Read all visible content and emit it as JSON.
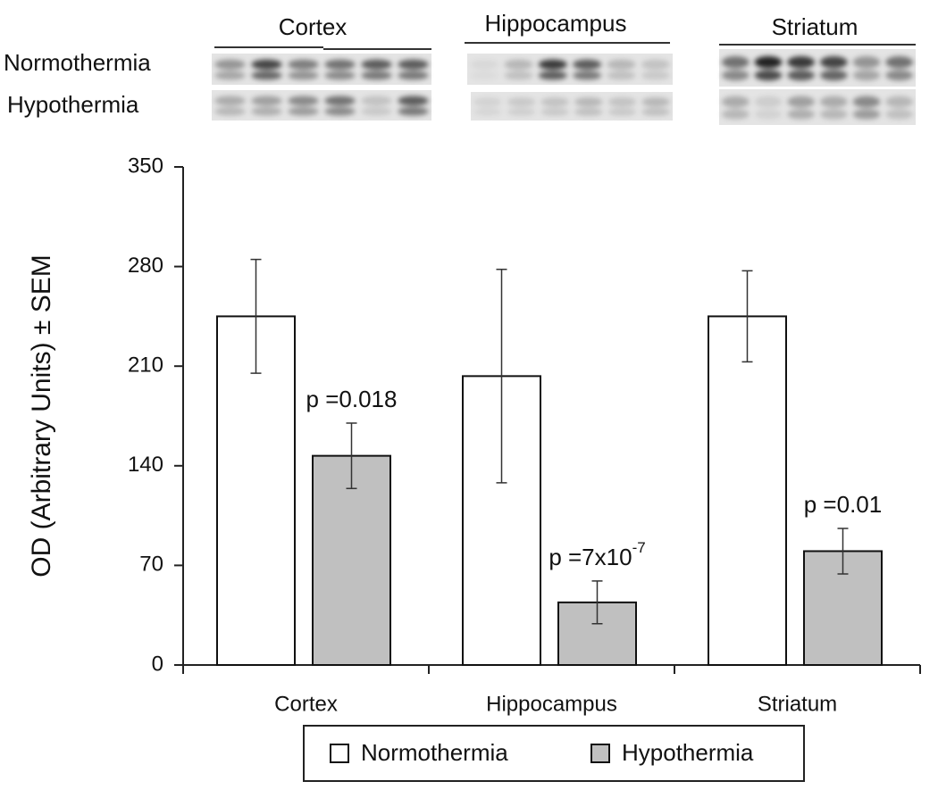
{
  "chart_data": {
    "type": "bar",
    "y_label": "OD (Arbitrary Units) ± SEM",
    "categories": [
      "Cortex",
      "Hippocampus",
      "Striatum"
    ],
    "series": [
      {
        "name": "Normothermia",
        "color": "#ffffff",
        "values": [
          245,
          203,
          245
        ],
        "errors": [
          40,
          75,
          32
        ]
      },
      {
        "name": "Hypothermia",
        "color": "#c0c0c0",
        "values": [
          147,
          44,
          80
        ],
        "errors": [
          23,
          15,
          16
        ]
      }
    ],
    "annotations": [
      {
        "text": "p =0.018"
      },
      {
        "text": "p =7x10",
        "sup": "-7"
      },
      {
        "text": "p =0.01"
      }
    ],
    "ylim": [
      0,
      350
    ],
    "yticks": [
      0,
      70,
      140,
      210,
      280,
      350
    ],
    "grid": false
  }
}
